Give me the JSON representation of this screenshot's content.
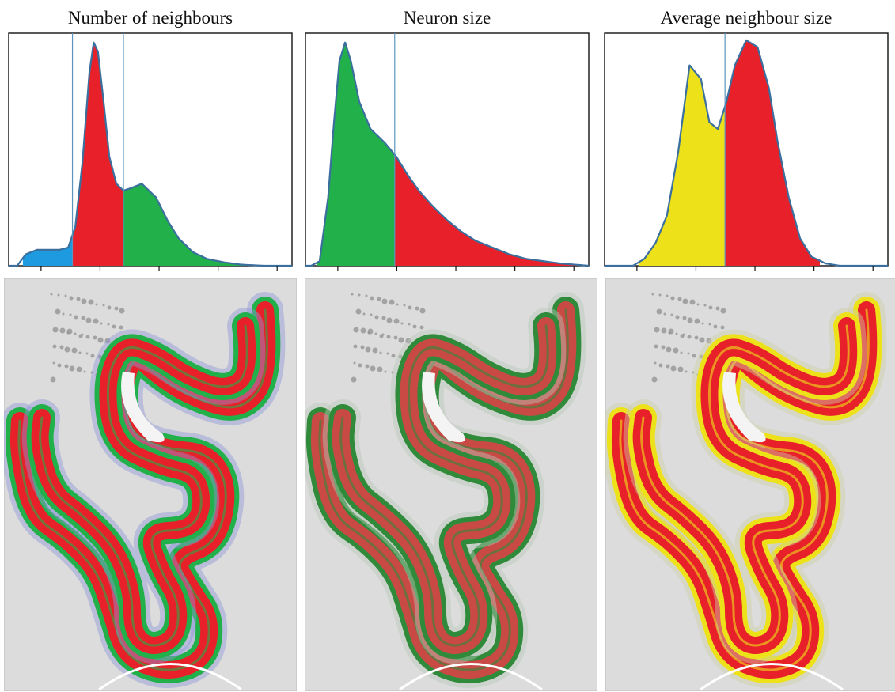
{
  "panels": [
    {
      "title": "Number of neighbours"
    },
    {
      "title": "Neuron size"
    },
    {
      "title": "Average neighbour size"
    }
  ],
  "colors": {
    "blue": "#1e9be0",
    "red": "#e8202a",
    "green": "#22b04a",
    "yellow": "#ede21a",
    "curve": "#3a6f9e",
    "threshold": "#5b95be"
  },
  "chart_data": [
    {
      "type": "area",
      "title": "Number of neighbours",
      "xlim": [
        0,
        10
      ],
      "ylim": [
        0,
        1
      ],
      "x": [
        0,
        0.3,
        0.6,
        1.0,
        1.4,
        1.8,
        2.1,
        2.35,
        2.6,
        2.85,
        3.0,
        3.15,
        3.35,
        3.55,
        3.8,
        4.05,
        4.3,
        4.7,
        5.2,
        5.6,
        6.0,
        6.5,
        7.0,
        7.6,
        8.2,
        9.0,
        10
      ],
      "y": [
        0.0,
        0.0,
        0.05,
        0.07,
        0.07,
        0.07,
        0.08,
        0.17,
        0.45,
        0.85,
        0.98,
        0.94,
        0.72,
        0.48,
        0.36,
        0.33,
        0.34,
        0.36,
        0.3,
        0.2,
        0.12,
        0.06,
        0.03,
        0.015,
        0.005,
        0.0,
        0.0
      ],
      "thresholds": [
        2.25,
        4.05
      ],
      "segments": [
        {
          "from": 0.5,
          "to": 2.25,
          "color": "blue"
        },
        {
          "from": 2.25,
          "to": 4.05,
          "color": "red"
        },
        {
          "from": 4.05,
          "to": 8.5,
          "color": "green"
        }
      ]
    },
    {
      "type": "area",
      "title": "Neuron size",
      "xlim": [
        0,
        10
      ],
      "ylim": [
        0,
        1
      ],
      "x": [
        0,
        0.2,
        0.5,
        0.8,
        1.0,
        1.2,
        1.4,
        1.6,
        1.9,
        2.3,
        2.8,
        3.2,
        3.6,
        4.0,
        4.5,
        5.0,
        5.5,
        6.0,
        6.6,
        7.2,
        7.8,
        8.4,
        9.0,
        9.5,
        10
      ],
      "y": [
        0.0,
        0.0,
        0.02,
        0.3,
        0.62,
        0.9,
        0.98,
        0.9,
        0.72,
        0.6,
        0.54,
        0.48,
        0.4,
        0.33,
        0.26,
        0.2,
        0.15,
        0.11,
        0.08,
        0.05,
        0.03,
        0.02,
        0.01,
        0.005,
        0.0
      ],
      "thresholds": [
        3.15
      ],
      "segments": [
        {
          "from": 0.4,
          "to": 3.15,
          "color": "green"
        },
        {
          "from": 3.15,
          "to": 9.8,
          "color": "red"
        }
      ]
    },
    {
      "type": "area",
      "title": "Average neighbour size",
      "xlim": [
        0,
        10
      ],
      "ylim": [
        0,
        1
      ],
      "x": [
        0,
        1.0,
        1.4,
        1.8,
        2.2,
        2.6,
        3.0,
        3.4,
        3.7,
        4.0,
        4.3,
        4.6,
        5.0,
        5.4,
        5.8,
        6.1,
        6.5,
        6.9,
        7.3,
        7.8,
        8.3,
        8.8,
        9.3,
        10
      ],
      "y": [
        0.0,
        0.0,
        0.03,
        0.1,
        0.22,
        0.5,
        0.88,
        0.82,
        0.63,
        0.6,
        0.72,
        0.88,
        0.99,
        0.96,
        0.78,
        0.55,
        0.3,
        0.12,
        0.04,
        0.01,
        0.0,
        0.0,
        0.0,
        0.0
      ],
      "thresholds": [
        4.25
      ],
      "segments": [
        {
          "from": 1.2,
          "to": 4.25,
          "color": "yellow"
        },
        {
          "from": 4.25,
          "to": 7.6,
          "color": "red"
        }
      ]
    }
  ]
}
